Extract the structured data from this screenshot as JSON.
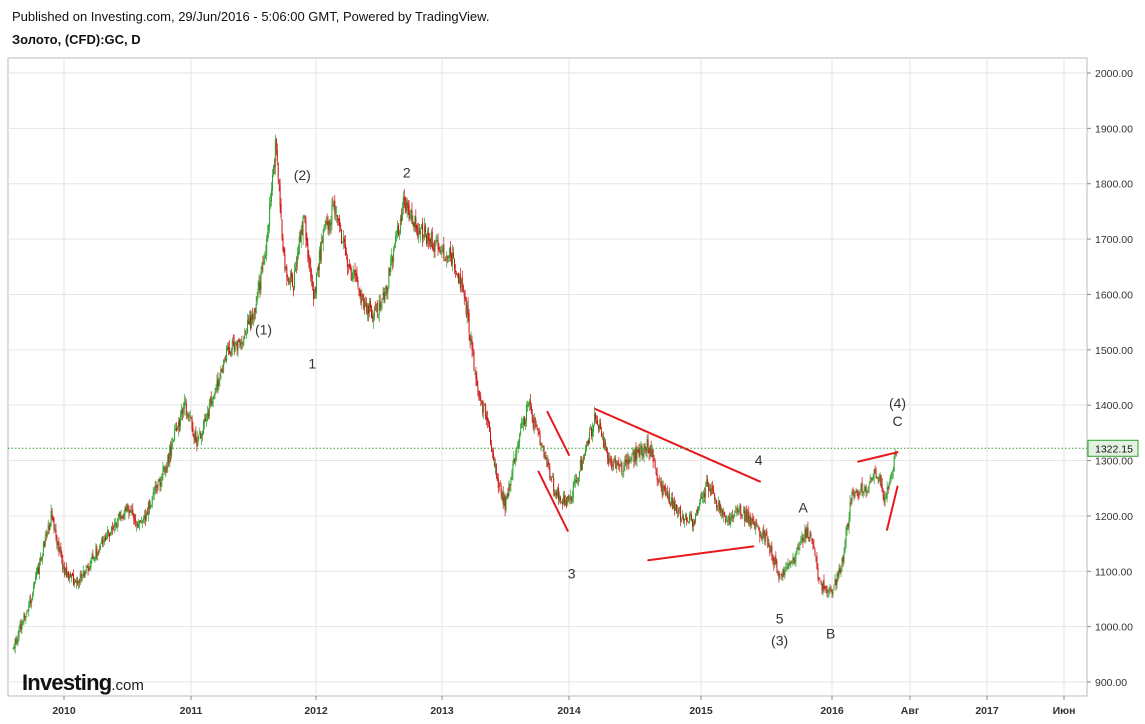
{
  "header": {
    "published": "Published on Investing.com, 29/Jun/2016 - 5:06:00 GMT, Powered by TradingView.",
    "symbol": "Золото, (CFD):GC, D"
  },
  "logo": {
    "main": "Investing",
    "suffix": ".com"
  },
  "colors": {
    "up": "#2ca02c",
    "down": "#cc1111",
    "trendline": "#e8191c",
    "price_line": "#2ca02c",
    "grid": "#e6e6e6",
    "price_label_bg": "#e3f2e3"
  },
  "chart_data": {
    "type": "candlestick",
    "title": "Золото, (CFD):GC, D",
    "x_ticks": [
      "2010",
      "2011",
      "2012",
      "2013",
      "2014",
      "2015",
      "2016",
      "Авг",
      "2017",
      "Июн"
    ],
    "y_ticks": [
      "900.00",
      "1000.00",
      "1100.00",
      "1200.00",
      "1300.00",
      "1400.00",
      "1500.00",
      "1600.00",
      "1700.00",
      "1800.00",
      "1900.00",
      "2000.00"
    ],
    "ylim": [
      880,
      2030
    ],
    "xlim": [
      2009.6,
      2017.9
    ],
    "grid": true,
    "current_price": 1322.15,
    "current_price_label": "1322.15",
    "price_path": [
      [
        2009.6,
        960
      ],
      [
        2009.75,
        1060
      ],
      [
        2009.9,
        1200
      ],
      [
        2010.0,
        1100
      ],
      [
        2010.1,
        1080
      ],
      [
        2010.3,
        1150
      ],
      [
        2010.5,
        1220
      ],
      [
        2010.6,
        1180
      ],
      [
        2010.8,
        1290
      ],
      [
        2010.95,
        1400
      ],
      [
        2011.05,
        1330
      ],
      [
        2011.15,
        1400
      ],
      [
        2011.3,
        1500
      ],
      [
        2011.4,
        1520
      ],
      [
        2011.5,
        1560
      ],
      [
        2011.6,
        1680
      ],
      [
        2011.68,
        1880
      ],
      [
        2011.75,
        1640
      ],
      [
        2011.82,
        1620
      ],
      [
        2011.9,
        1740
      ],
      [
        2011.98,
        1590
      ],
      [
        2012.05,
        1700
      ],
      [
        2012.15,
        1760
      ],
      [
        2012.25,
        1660
      ],
      [
        2012.35,
        1600
      ],
      [
        2012.45,
        1560
      ],
      [
        2012.55,
        1600
      ],
      [
        2012.7,
        1770
      ],
      [
        2012.8,
        1720
      ],
      [
        2012.9,
        1700
      ],
      [
        2013.0,
        1680
      ],
      [
        2013.1,
        1660
      ],
      [
        2013.2,
        1570
      ],
      [
        2013.28,
        1420
      ],
      [
        2013.35,
        1380
      ],
      [
        2013.45,
        1250
      ],
      [
        2013.5,
        1220
      ],
      [
        2013.6,
        1340
      ],
      [
        2013.68,
        1400
      ],
      [
        2013.8,
        1310
      ],
      [
        2013.9,
        1240
      ],
      [
        2014.0,
        1225
      ],
      [
        2014.1,
        1300
      ],
      [
        2014.2,
        1380
      ],
      [
        2014.3,
        1300
      ],
      [
        2014.4,
        1290
      ],
      [
        2014.5,
        1310
      ],
      [
        2014.6,
        1330
      ],
      [
        2014.7,
        1250
      ],
      [
        2014.85,
        1200
      ],
      [
        2014.95,
        1190
      ],
      [
        2015.05,
        1260
      ],
      [
        2015.1,
        1230
      ],
      [
        2015.2,
        1190
      ],
      [
        2015.3,
        1210
      ],
      [
        2015.4,
        1185
      ],
      [
        2015.5,
        1160
      ],
      [
        2015.6,
        1090
      ],
      [
        2015.7,
        1120
      ],
      [
        2015.8,
        1170
      ],
      [
        2015.85,
        1160
      ],
      [
        2015.9,
        1080
      ],
      [
        2016.0,
        1060
      ],
      [
        2016.08,
        1120
      ],
      [
        2016.15,
        1240
      ],
      [
        2016.25,
        1250
      ],
      [
        2016.35,
        1280
      ],
      [
        2016.4,
        1230
      ],
      [
        2016.45,
        1260
      ],
      [
        2016.49,
        1322
      ]
    ],
    "trendlines": [
      [
        [
          2013.83,
          1388
        ],
        [
          2014.0,
          1310
        ]
      ],
      [
        [
          2013.76,
          1280
        ],
        [
          2013.99,
          1173
        ]
      ],
      [
        [
          2014.2,
          1393
        ],
        [
          2015.45,
          1262
        ]
      ],
      [
        [
          2014.6,
          1120
        ],
        [
          2015.4,
          1145
        ]
      ],
      [
        [
          2016.2,
          1298
        ],
        [
          2016.5,
          1315
        ]
      ],
      [
        [
          2016.42,
          1175
        ],
        [
          2016.5,
          1253
        ]
      ]
    ],
    "wave_labels": [
      {
        "text": "(1)",
        "x": 2011.58,
        "y": 1528
      },
      {
        "text": "(2)",
        "x": 2011.89,
        "y": 1807
      },
      {
        "text": "1",
        "x": 2011.97,
        "y": 1466
      },
      {
        "text": "2",
        "x": 2012.72,
        "y": 1811
      },
      {
        "text": "3",
        "x": 2014.02,
        "y": 1087
      },
      {
        "text": "4",
        "x": 2015.44,
        "y": 1292
      },
      {
        "text": "5",
        "x": 2015.6,
        "y": 1006
      },
      {
        "text": "(3)",
        "x": 2015.6,
        "y": 966
      },
      {
        "text": "A",
        "x": 2015.78,
        "y": 1206
      },
      {
        "text": "B",
        "x": 2015.99,
        "y": 979
      },
      {
        "text": "(4)",
        "x": 2016.5,
        "y": 1395
      },
      {
        "text": "C",
        "x": 2016.5,
        "y": 1362
      }
    ]
  }
}
